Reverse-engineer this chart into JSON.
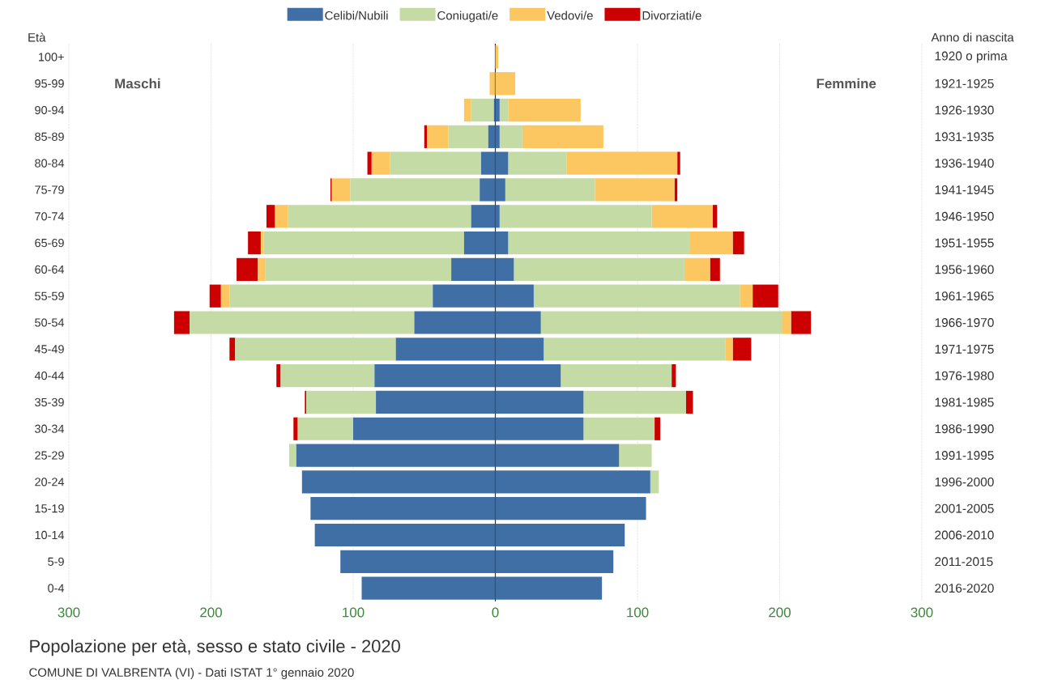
{
  "chart_data": [
    {
      "type": "bar",
      "orientation": "horizontal",
      "stacked": true,
      "title": "Popolazione per età, sesso e stato civile - 2020",
      "ylabel": "Età",
      "annotations": [
        "Maschi",
        "COMUNE DI VALBRENTA (VI) - Dati ISTAT 1° gennaio 2020"
      ],
      "categories": [
        "100+",
        "95-99",
        "90-94",
        "85-89",
        "80-84",
        "75-79",
        "70-74",
        "65-69",
        "60-64",
        "55-59",
        "50-54",
        "45-49",
        "40-44",
        "35-39",
        "30-34",
        "25-29",
        "20-24",
        "15-19",
        "10-14",
        "5-9",
        "0-4"
      ],
      "series": [
        {
          "name": "Celibi/Nubili",
          "color": "#3f6fa5",
          "values": [
            0,
            0,
            1,
            5,
            10,
            11,
            17,
            22,
            31,
            44,
            57,
            70,
            85,
            84,
            100,
            140,
            136,
            130,
            127,
            109,
            94
          ]
        },
        {
          "name": "Coniugati/e",
          "color": "#c5dba5",
          "values": [
            0,
            0,
            16,
            28,
            64,
            91,
            129,
            141,
            131,
            143,
            158,
            113,
            66,
            49,
            39,
            5,
            0,
            0,
            0,
            0,
            0
          ]
        },
        {
          "name": "Vedovi/e",
          "color": "#fcc660",
          "values": [
            0,
            4,
            5,
            15,
            13,
            13,
            9,
            2,
            5,
            6,
            0,
            0,
            0,
            0,
            0,
            0,
            0,
            0,
            0,
            0,
            0
          ]
        },
        {
          "name": "Divorziati/e",
          "color": "#cc0000",
          "values": [
            0,
            0,
            0,
            2,
            3,
            1,
            6,
            9,
            15,
            8,
            11,
            4,
            3,
            1,
            3,
            0,
            0,
            0,
            0,
            0,
            0
          ]
        }
      ],
      "xlim": [
        300,
        0
      ],
      "xticks": [
        300,
        200,
        100,
        0
      ],
      "grid": "x",
      "legend": "top"
    },
    {
      "type": "bar",
      "orientation": "horizontal",
      "stacked": true,
      "y2label": "Anno di nascita",
      "annotations": [
        "Femmine"
      ],
      "y2_categories": [
        "1920 o prima",
        "1921-1925",
        "1926-1930",
        "1931-1935",
        "1936-1940",
        "1941-1945",
        "1946-1950",
        "1951-1955",
        "1956-1960",
        "1961-1965",
        "1966-1970",
        "1971-1975",
        "1976-1980",
        "1981-1985",
        "1986-1990",
        "1991-1995",
        "1996-2000",
        "2001-2005",
        "2006-2010",
        "2011-2015",
        "2016-2020"
      ],
      "series": [
        {
          "color": "#3f6fa5",
          "values": [
            0,
            0,
            3,
            3,
            9,
            7,
            3,
            9,
            13,
            27,
            32,
            34,
            46,
            62,
            62,
            87,
            109,
            106,
            91,
            83,
            75
          ]
        },
        {
          "color": "#c5dba5",
          "values": [
            0,
            0,
            6,
            16,
            41,
            63,
            107,
            128,
            120,
            145,
            170,
            128,
            78,
            72,
            50,
            23,
            6,
            0,
            0,
            0,
            0
          ]
        },
        {
          "color": "#fcc660",
          "values": [
            2,
            14,
            51,
            57,
            78,
            56,
            43,
            30,
            18,
            9,
            6,
            5,
            0,
            0,
            0,
            0,
            0,
            0,
            0,
            0,
            0
          ]
        },
        {
          "color": "#cc0000",
          "values": [
            0,
            0,
            0,
            0,
            2,
            2,
            3,
            8,
            7,
            18,
            14,
            13,
            3,
            5,
            4,
            0,
            0,
            0,
            0,
            0,
            0
          ]
        }
      ],
      "xlim": [
        0,
        300
      ],
      "xticks": [
        {
          "value": 0,
          "label": null
        },
        100,
        200,
        300
      ],
      "tick_labels": "x",
      "grid": "x"
    }
  ]
}
